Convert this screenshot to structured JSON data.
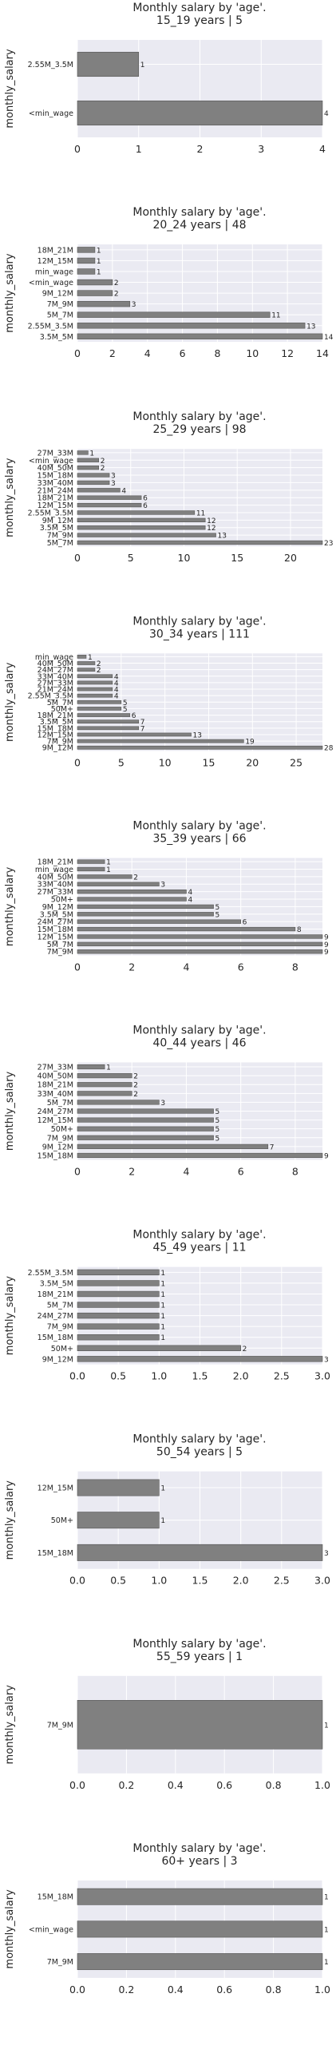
{
  "chart_data": [
    {
      "type": "bar",
      "orientation": "horizontal",
      "title": "Monthly salary by 'age'.",
      "subtitle": "15_19 years | 5",
      "xlabel": "",
      "ylabel": "monthly_salary",
      "xlim": [
        0,
        4
      ],
      "xticks": [
        "0",
        "1",
        "2",
        "3",
        "4"
      ],
      "grid": true,
      "categories": [
        "<min_wage",
        "2.55M_3.5M"
      ],
      "values": [
        4,
        1
      ]
    },
    {
      "type": "bar",
      "orientation": "horizontal",
      "title": "Monthly salary by 'age'.",
      "subtitle": "20_24 years | 48",
      "xlabel": "",
      "ylabel": "monthly_salary",
      "xlim": [
        0,
        14
      ],
      "xticks": [
        "0",
        "2",
        "4",
        "6",
        "8",
        "10",
        "12",
        "14"
      ],
      "grid": true,
      "categories": [
        "3.5M_5M",
        "2.55M_3.5M",
        "5M_7M",
        "7M_9M",
        "9M_12M",
        "<min_wage",
        "min_wage",
        "12M_15M",
        "18M_21M"
      ],
      "values": [
        14,
        13,
        11,
        3,
        2,
        2,
        1,
        1,
        1
      ]
    },
    {
      "type": "bar",
      "orientation": "horizontal",
      "title": "Monthly salary by 'age'.",
      "subtitle": "25_29 years | 98",
      "xlabel": "",
      "ylabel": "monthly_salary",
      "xlim": [
        0,
        23
      ],
      "xticks": [
        "0",
        "5",
        "10",
        "15",
        "20"
      ],
      "grid": true,
      "categories": [
        "5M_7M",
        "7M_9M",
        "3.5M_5M",
        "9M_12M",
        "2.55M_3.5M",
        "12M_15M",
        "18M_21M",
        "21M_24M",
        "33M_40M",
        "15M_18M",
        "40M_50M",
        "<min_wage",
        "27M_33M"
      ],
      "values": [
        23,
        13,
        12,
        12,
        11,
        6,
        6,
        4,
        3,
        3,
        2,
        2,
        1
      ]
    },
    {
      "type": "bar",
      "orientation": "horizontal",
      "title": "Monthly salary by 'age'.",
      "subtitle": "30_34 years | 111",
      "xlabel": "",
      "ylabel": "monthly_salary",
      "xlim": [
        0,
        28
      ],
      "xticks": [
        "0",
        "5",
        "10",
        "15",
        "20",
        "25"
      ],
      "grid": true,
      "categories": [
        "9M_12M",
        "7M_9M",
        "12M_15M",
        "15M_18M",
        "3.5M_5M",
        "18M_21M",
        "50M+",
        "5M_7M",
        "2.55M_3.5M",
        "21M_24M",
        "27M_33M",
        "33M_40M",
        "24M_27M",
        "40M_50M",
        "min_wage"
      ],
      "values": [
        28,
        19,
        13,
        7,
        7,
        6,
        5,
        5,
        4,
        4,
        4,
        4,
        2,
        2,
        1
      ]
    },
    {
      "type": "bar",
      "orientation": "horizontal",
      "title": "Monthly salary by 'age'.",
      "subtitle": "35_39 years | 66",
      "xlabel": "",
      "ylabel": "monthly_salary",
      "xlim": [
        0,
        9
      ],
      "xticks": [
        "0",
        "2",
        "4",
        "6",
        "8"
      ],
      "grid": true,
      "categories": [
        "7M_9M",
        "5M_7M",
        "12M_15M",
        "15M_18M",
        "24M_27M",
        "3.5M_5M",
        "9M_12M",
        "50M+",
        "27M_33M",
        "33M_40M",
        "40M_50M",
        "min_wage",
        "18M_21M"
      ],
      "values": [
        9,
        9,
        9,
        8,
        6,
        5,
        5,
        4,
        4,
        3,
        2,
        1,
        1
      ]
    },
    {
      "type": "bar",
      "orientation": "horizontal",
      "title": "Monthly salary by 'age'.",
      "subtitle": "40_44 years | 46",
      "xlabel": "",
      "ylabel": "monthly_salary",
      "xlim": [
        0,
        9
      ],
      "xticks": [
        "0",
        "2",
        "4",
        "6",
        "8"
      ],
      "grid": true,
      "categories": [
        "15M_18M",
        "9M_12M",
        "7M_9M",
        "50M+",
        "12M_15M",
        "24M_27M",
        "5M_7M",
        "33M_40M",
        "18M_21M",
        "40M_50M",
        "27M_33M"
      ],
      "values": [
        9,
        7,
        5,
        5,
        5,
        5,
        3,
        2,
        2,
        2,
        1
      ]
    },
    {
      "type": "bar",
      "orientation": "horizontal",
      "title": "Monthly salary by 'age'.",
      "subtitle": "45_49 years | 11",
      "xlabel": "",
      "ylabel": "monthly_salary",
      "xlim": [
        0,
        3
      ],
      "xticks": [
        "0.0",
        "0.5",
        "1.0",
        "1.5",
        "2.0",
        "2.5",
        "3.0"
      ],
      "grid": true,
      "categories": [
        "9M_12M",
        "50M+",
        "15M_18M",
        "7M_9M",
        "24M_27M",
        "5M_7M",
        "18M_21M",
        "3.5M_5M",
        "2.55M_3.5M"
      ],
      "values": [
        3,
        2,
        1,
        1,
        1,
        1,
        1,
        1,
        1
      ]
    },
    {
      "type": "bar",
      "orientation": "horizontal",
      "title": "Monthly salary by 'age'.",
      "subtitle": "50_54 years | 5",
      "xlabel": "",
      "ylabel": "monthly_salary",
      "xlim": [
        0,
        3
      ],
      "xticks": [
        "0.0",
        "0.5",
        "1.0",
        "1.5",
        "2.0",
        "2.5",
        "3.0"
      ],
      "grid": true,
      "categories": [
        "15M_18M",
        "50M+",
        "12M_15M"
      ],
      "values": [
        3,
        1,
        1
      ]
    },
    {
      "type": "bar",
      "orientation": "horizontal",
      "title": "Monthly salary by 'age'.",
      "subtitle": "55_59 years | 1",
      "xlabel": "",
      "ylabel": "monthly_salary",
      "xlim": [
        0,
        1
      ],
      "xticks": [
        "0.0",
        "0.2",
        "0.4",
        "0.6",
        "0.8",
        "1.0"
      ],
      "grid": true,
      "categories": [
        "7M_9M"
      ],
      "values": [
        1
      ]
    },
    {
      "type": "bar",
      "orientation": "horizontal",
      "title": "Monthly salary by 'age'.",
      "subtitle": "60+ years | 3",
      "xlabel": "",
      "ylabel": "monthly_salary",
      "xlim": [
        0,
        1
      ],
      "xticks": [
        "0.0",
        "0.2",
        "0.4",
        "0.6",
        "0.8",
        "1.0"
      ],
      "grid": true,
      "categories": [
        "7M_9M",
        "<min_wage",
        "15M_18M"
      ],
      "values": [
        1,
        1,
        1
      ]
    }
  ],
  "colors": {
    "bar": "#808080",
    "bar_edge": "#555555",
    "plot_background": "#eaeaf2",
    "grid": "#ffffff",
    "text": "#262626"
  }
}
